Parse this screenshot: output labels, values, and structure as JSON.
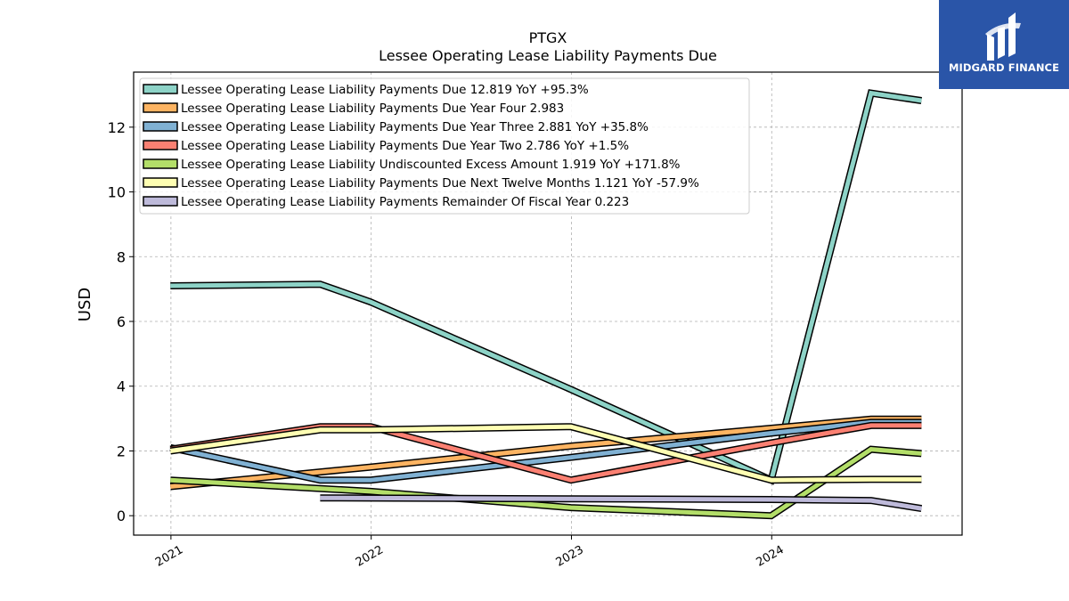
{
  "chart_data": {
    "type": "line",
    "title": "PTGX",
    "subtitle": "Lessee Operating Lease Liability Payments Due",
    "ylabel": "USD",
    "xlabel": "",
    "ylim": [
      -0.6,
      13.7
    ],
    "xlim": [
      "2020-10-25",
      "2024-12-13"
    ],
    "yticks": [
      0,
      2,
      4,
      6,
      8,
      10,
      12
    ],
    "xticks": [
      {
        "label": "2021",
        "date": "2021-01-01"
      },
      {
        "label": "2022",
        "date": "2022-01-01"
      },
      {
        "label": "2023",
        "date": "2023-01-01"
      },
      {
        "label": "2024",
        "date": "2024-01-01"
      }
    ],
    "grid": true,
    "legend_position": "top-left",
    "series": [
      {
        "name": "Lessee Operating Lease Liability Payments Due",
        "legend": "Lessee Operating Lease Liability Payments Due  12.819 YoY +95.3%",
        "color": "#8dd3c7",
        "points": [
          [
            "2020-12-31",
            7.1
          ],
          [
            "2021-09-30",
            7.15
          ],
          [
            "2021-12-31",
            6.6
          ],
          [
            "2022-12-31",
            3.9
          ],
          [
            "2023-12-31",
            1.1
          ],
          [
            "2024-06-30",
            13.05
          ],
          [
            "2024-09-30",
            12.819
          ]
        ]
      },
      {
        "name": "Lessee Operating Lease Liability Payments Due Year Four",
        "legend": "Lessee Operating Lease Liability Payments Due Year Four  2.983",
        "color": "#fdb462",
        "points": [
          [
            "2020-12-31",
            0.9
          ],
          [
            "2021-12-31",
            1.5
          ],
          [
            "2022-12-31",
            2.15
          ],
          [
            "2023-12-31",
            2.7
          ],
          [
            "2024-06-30",
            2.983
          ],
          [
            "2024-09-30",
            2.983
          ]
        ]
      },
      {
        "name": "Lessee Operating Lease Liability Payments Due Year Three",
        "legend": "Lessee Operating Lease Liability Payments Due Year Three  2.881 YoY +35.8%",
        "color": "#80b1d3",
        "points": [
          [
            "2020-12-31",
            2.1
          ],
          [
            "2021-09-30",
            1.1
          ],
          [
            "2021-12-31",
            1.1
          ],
          [
            "2022-12-31",
            1.8
          ],
          [
            "2023-12-31",
            2.55
          ],
          [
            "2024-06-30",
            2.881
          ],
          [
            "2024-09-30",
            2.881
          ]
        ]
      },
      {
        "name": "Lessee Operating Lease Liability Payments Due Year Two",
        "legend": "Lessee Operating Lease Liability Payments Due Year Two  2.786 YoY +1.5%",
        "color": "#fb8072",
        "points": [
          [
            "2020-12-31",
            2.05
          ],
          [
            "2021-09-30",
            2.75
          ],
          [
            "2021-12-31",
            2.75
          ],
          [
            "2022-12-31",
            1.1
          ],
          [
            "2023-12-31",
            2.25
          ],
          [
            "2024-06-30",
            2.786
          ],
          [
            "2024-09-30",
            2.786
          ]
        ]
      },
      {
        "name": "Lessee Operating Lease Liability Undiscounted Excess Amount",
        "legend": "Lessee Operating Lease Liability Undiscounted Excess Amount  1.919 YoY +171.8%",
        "color": "#b3de69",
        "points": [
          [
            "2020-12-31",
            1.1
          ],
          [
            "2021-12-31",
            0.75
          ],
          [
            "2022-12-31",
            0.25
          ],
          [
            "2023-12-31",
            0.0
          ],
          [
            "2024-06-30",
            2.05
          ],
          [
            "2024-09-30",
            1.919
          ]
        ]
      },
      {
        "name": "Lessee Operating Lease Liability Payments Due Next Twelve Months",
        "legend": "Lessee Operating Lease Liability Payments Due Next Twelve Months  1.121 YoY -57.9%",
        "color": "#ffffb3",
        "points": [
          [
            "2020-12-31",
            2.0
          ],
          [
            "2021-09-30",
            2.65
          ],
          [
            "2021-12-31",
            2.65
          ],
          [
            "2022-12-31",
            2.75
          ],
          [
            "2023-12-31",
            1.1
          ],
          [
            "2024-06-30",
            1.121
          ],
          [
            "2024-09-30",
            1.121
          ]
        ]
      },
      {
        "name": "Lessee Operating Lease Liability Payments Remainder Of Fiscal Year",
        "legend": "Lessee Operating Lease Liability Payments Remainder Of Fiscal Year  0.223",
        "color": "#bebada",
        "points": [
          [
            "2021-09-30",
            0.55
          ],
          [
            "2022-12-31",
            0.52
          ],
          [
            "2023-12-31",
            0.5
          ],
          [
            "2024-06-30",
            0.47
          ],
          [
            "2024-09-30",
            0.223
          ]
        ]
      }
    ]
  },
  "branding": {
    "logo_text": "MIDGARD FINANCE",
    "logo_icon": "midgard-logo-icon",
    "logo_color": "#2a55a8"
  }
}
